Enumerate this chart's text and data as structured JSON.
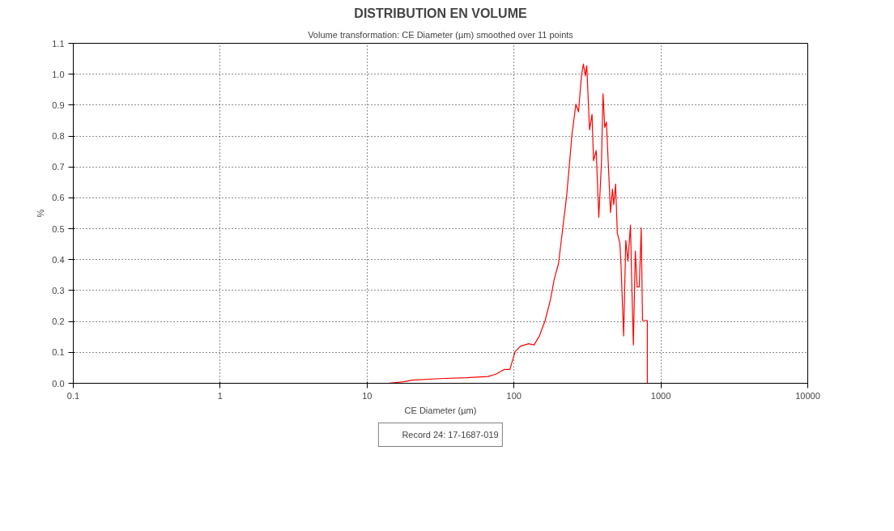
{
  "chart_data": {
    "type": "line",
    "title": "DISTRIBUTION EN VOLUME",
    "subtitle": "Volume transformation: CE Diameter (µm) smoothed over 11 points",
    "xlabel": "CE Diameter (µm)",
    "ylabel": "%",
    "log": "x",
    "xlim": [
      0.1,
      10000
    ],
    "xticks": [
      0.1,
      1,
      10,
      100,
      1000,
      10000
    ],
    "ylim": [
      0,
      1.1
    ],
    "yticks": [
      {
        "value": 0,
        "label": "0.0"
      },
      0.1,
      0.2,
      0.3,
      0.4,
      0.5,
      0.6,
      0.7,
      0.8,
      0.9,
      {
        "value": 1,
        "label": "1.0"
      },
      1.1
    ],
    "grid": true,
    "legend": "bottom",
    "marker": "none",
    "line_style": "solid",
    "series": [
      {
        "name": "Record 24: 17-1687-019",
        "color": "#ff0000",
        "x": [
          0.1,
          13.8,
          17.8,
          20.2,
          30.9,
          47.4,
          66.7,
          75.9,
          86.1,
          93.8,
          102,
          111,
          126,
          137,
          149,
          163,
          177,
          188,
          201,
          214,
          228,
          238,
          248,
          264,
          275,
          288,
          297,
          306,
          313,
          327,
          340,
          348,
          363,
          378,
          394,
          404,
          415,
          426,
          445,
          454,
          468,
          478,
          492,
          505,
          526,
          535,
          558,
          577,
          597,
          621,
          634,
          650,
          670,
          690,
          713,
          735,
          750,
          809,
          809,
          2000
        ],
        "values": [
          0,
          0,
          0.005,
          0.01,
          0.015,
          0.018,
          0.022,
          0.03,
          0.045,
          0.045,
          0.103,
          0.12,
          0.128,
          0.124,
          0.153,
          0.203,
          0.27,
          0.337,
          0.387,
          0.495,
          0.603,
          0.703,
          0.803,
          0.903,
          0.878,
          0.995,
          1.033,
          0.995,
          1.028,
          0.82,
          0.87,
          0.72,
          0.753,
          0.537,
          0.712,
          0.937,
          0.828,
          0.845,
          0.645,
          0.553,
          0.628,
          0.578,
          0.645,
          0.487,
          0.453,
          0.387,
          0.153,
          0.462,
          0.395,
          0.512,
          0.32,
          0.124,
          0.428,
          0.312,
          0.312,
          0.503,
          0.203,
          0.203,
          0,
          0
        ]
      }
    ]
  }
}
